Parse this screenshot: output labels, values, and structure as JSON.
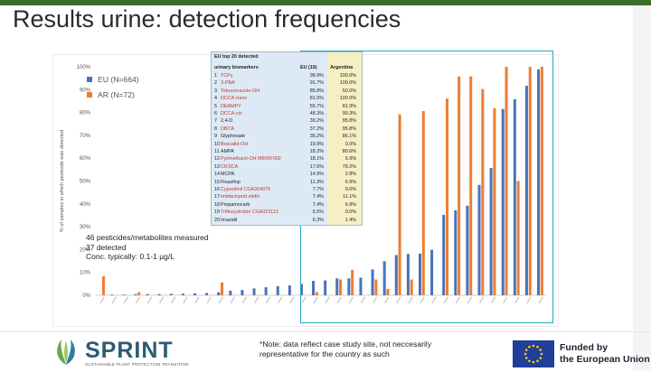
{
  "slide": {
    "title": "Results urine: detection frequencies",
    "note_lines": [
      "46 pesticides/metabolites measured",
      "37 detected",
      "Conc. typically: 0.1-1 µg/L"
    ],
    "footnote_lines": [
      "*Note: data reflect case study site, not neccesarily",
      "representative for the country as such"
    ],
    "logo": {
      "word": "SPRINT",
      "sub": "SUSTAINABLE PLANT PROTECTION TRANSITION"
    },
    "funding": {
      "line1": "Funded by",
      "line2": "the European Union"
    }
  },
  "top20": {
    "title_line1": "EU top 20 detected",
    "title_line2": "urinary biomarkers",
    "col_eu": "EU (10)",
    "col_ar": "Argentina",
    "rows": [
      {
        "rank": "1",
        "name": "TCPy",
        "eu": "98.9%",
        "ar": "100.0%",
        "red": true
      },
      {
        "rank": "2",
        "name": "3-PBA",
        "eu": "91.7%",
        "ar": "100.0%",
        "red": true
      },
      {
        "rank": "3",
        "name": "Tebuconazole-OH",
        "eu": "85.8%",
        "ar": "50.0%",
        "red": true
      },
      {
        "rank": "4",
        "name": "DCCA-trans",
        "eu": "81.5%",
        "ar": "100.0%",
        "red": true
      },
      {
        "rank": "5",
        "name": "DEAMPY",
        "eu": "55.7%",
        "ar": "81.9%",
        "red": true
      },
      {
        "rank": "6",
        "name": "DCCA-cis",
        "eu": "48.3%",
        "ar": "90.3%",
        "red": true
      },
      {
        "rank": "7",
        "name": "2,4-D",
        "eu": "39.2%",
        "ar": "95.8%",
        "red": false
      },
      {
        "rank": "8",
        "name": "DBCA",
        "eu": "37.2%",
        "ar": "95.8%",
        "red": true
      },
      {
        "rank": "9",
        "name": "Glyphosate",
        "eu": "35.2%",
        "ar": "86.1%",
        "red": false
      },
      {
        "rank": "10",
        "name": "Boscalid-OH",
        "eu": "19.9%",
        "ar": "0.0%",
        "red": true
      },
      {
        "rank": "11",
        "name": "AMPA",
        "eu": "18.2%",
        "ar": "80.6%",
        "red": false
      },
      {
        "rank": "12",
        "name": "Pyrimethanil-OH M605F002",
        "eu": "18.1%",
        "ar": "6.9%",
        "red": true
      },
      {
        "rank": "13",
        "name": "CIF3CA",
        "eu": "17.6%",
        "ar": "79.2%",
        "red": true
      },
      {
        "rank": "14",
        "name": "MCPA",
        "eu": "14.9%",
        "ar": "2.8%",
        "red": false
      },
      {
        "rank": "15",
        "name": "Fluazifop",
        "eu": "11.3%",
        "ar": "6.9%",
        "red": false
      },
      {
        "rank": "16",
        "name": "Cyprodinil CGA304075",
        "eu": "7.7%",
        "ar": "0.0%",
        "red": true
      },
      {
        "rank": "17",
        "name": "Imidacloprid olefin",
        "eu": "7.4%",
        "ar": "11.1%",
        "red": true
      },
      {
        "rank": "18",
        "name": "Propamocarb",
        "eu": "7.4%",
        "ar": "6.9%",
        "red": false
      },
      {
        "rank": "19",
        "name": "Trifloxystrobin CGA321113",
        "eu": "6.5%",
        "ar": "0.0%",
        "red": true
      },
      {
        "rank": "20",
        "name": "Imazalil",
        "eu": "6.3%",
        "ar": "1.4%",
        "red": false
      }
    ]
  },
  "chart_data": {
    "type": "bar",
    "ylabel": "% of samples in which pesticide was detected",
    "ylim": [
      0,
      100
    ],
    "yticks": [
      "0%",
      "10%",
      "20%",
      "30%",
      "40%",
      "50%",
      "60%",
      "70%",
      "80%",
      "90%",
      "100%"
    ],
    "grid": false,
    "legend_position": "top-left",
    "series": [
      {
        "name": "EU (N=664)",
        "color": "#4a72b8",
        "values": [
          0,
          0.3,
          0.3,
          0.5,
          0.5,
          0.5,
          0.6,
          0.7,
          0.8,
          1.0,
          1.3,
          2.0,
          2.3,
          3.0,
          3.5,
          4.0,
          4.3,
          5.0,
          6.3,
          6.5,
          7.4,
          7.4,
          7.7,
          11.3,
          14.9,
          17.6,
          18.1,
          18.2,
          19.9,
          35.2,
          37.2,
          39.2,
          48.3,
          55.7,
          81.5,
          85.8,
          91.7,
          98.9
        ]
      },
      {
        "name": "AR (N=72)",
        "color": "#ed7d31",
        "values": [
          8.3,
          0,
          0,
          1.4,
          0,
          0,
          0,
          0,
          0,
          0,
          5.6,
          0,
          0,
          0,
          0,
          0,
          0,
          0,
          1.4,
          0,
          6.9,
          11.1,
          0,
          6.9,
          2.8,
          79.2,
          6.9,
          80.6,
          0,
          86.1,
          95.8,
          95.8,
          90.3,
          81.9,
          100,
          50,
          100,
          100
        ]
      }
    ]
  }
}
